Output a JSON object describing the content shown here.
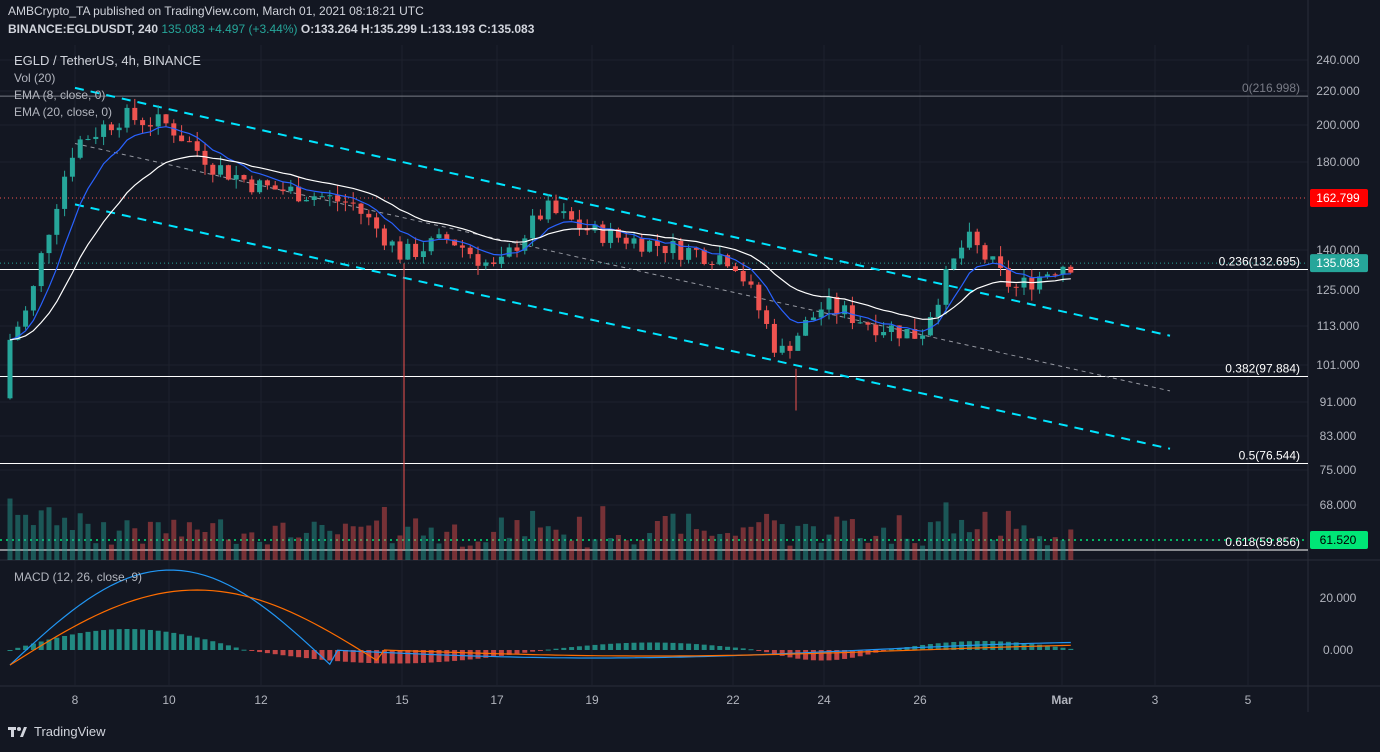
{
  "header": {
    "publisher": "AMBCrypto_TA published on TradingView.com, March 01, 2021 08:18:21 UTC",
    "symbol": "BINANCE:EGLDUSDT, 240",
    "last": "135.083",
    "change": "+4.497 (+3.44%)",
    "open": "O:133.264",
    "high": "H:135.299",
    "low": "L:133.193",
    "close": "C:135.083"
  },
  "pane_labels": {
    "title": "EGLD / TetherUS, 4h, BINANCE",
    "vol": "Vol (20)",
    "ema8": "EMA (8, close, 0)",
    "ema20": "EMA (20, close, 0)",
    "macd": "MACD (12, 26, close, 9)"
  },
  "footer": {
    "brand": "TradingView"
  },
  "colors": {
    "up": "#26a69a",
    "down": "#ef5350",
    "channel": "#00e5ff",
    "ema8": "#2962ff",
    "ema20": "#ffffff",
    "macd_signal": "#ff6d00"
  },
  "chart_data": {
    "type": "candlestick",
    "price_axis": [
      "240.000",
      "220.000",
      "200.000",
      "180.000",
      "162.799",
      "140.000",
      "135.083",
      "125.000",
      "113.000",
      "101.000",
      "91.000",
      "83.000",
      "75.000",
      "68.000",
      "61.520"
    ],
    "macd_axis": [
      "20.000",
      "0.000"
    ],
    "time_axis": [
      "8",
      "10",
      "12",
      "15",
      "17",
      "19",
      "22",
      "24",
      "26",
      "Mar",
      "3",
      "5"
    ],
    "last_price": 135.083,
    "resistance_level": 162.799,
    "volume_ma_level": 61.52,
    "fibonacci": [
      {
        "label": "0(216.998)",
        "value": 216.998
      },
      {
        "label": "0.236(132.695)",
        "value": 132.695
      },
      {
        "label": "0.382(97.884)",
        "value": 97.884
      },
      {
        "label": "0.5(76.544)",
        "value": 76.544
      },
      {
        "label": "0.618(59.856)",
        "value": 59.856
      }
    ],
    "channel": {
      "upper": [
        {
          "date": "Feb 8",
          "value": 222
        },
        {
          "date": "Mar 3",
          "value": 110
        }
      ],
      "mid": [
        {
          "date": "Feb 8",
          "value": 190
        },
        {
          "date": "Mar 3",
          "value": 94
        }
      ],
      "lower": [
        {
          "date": "Feb 8",
          "value": 160
        },
        {
          "date": "Mar 3",
          "value": 80
        }
      ]
    },
    "price_anchors": [
      {
        "date": "Feb 6",
        "value": 92
      },
      {
        "date": "Feb 7",
        "value": 120
      },
      {
        "date": "Feb 8",
        "value": 190
      },
      {
        "date": "Feb 9",
        "value": 205
      },
      {
        "date": "Feb 10",
        "value": 200
      },
      {
        "date": "Feb 11",
        "value": 178
      },
      {
        "date": "Feb 12",
        "value": 168
      },
      {
        "date": "Feb 13",
        "value": 165
      },
      {
        "date": "Feb 14",
        "value": 160
      },
      {
        "date": "Feb 15",
        "value": 138
      },
      {
        "date": "Feb 16",
        "value": 145
      },
      {
        "date": "Feb 17",
        "value": 132
      },
      {
        "date": "Feb 18",
        "value": 158
      },
      {
        "date": "Feb 19",
        "value": 148
      },
      {
        "date": "Feb 20",
        "value": 144
      },
      {
        "date": "Feb 21",
        "value": 140
      },
      {
        "date": "Feb 22",
        "value": 137
      },
      {
        "date": "Feb 23",
        "value": 104
      },
      {
        "date": "Feb 24",
        "value": 120
      },
      {
        "date": "Feb 25",
        "value": 114
      },
      {
        "date": "Feb 26",
        "value": 110
      },
      {
        "date": "Feb 27",
        "value": 145
      },
      {
        "date": "Feb 28",
        "value": 125
      },
      {
        "date": "Mar 1",
        "value": 135
      }
    ]
  }
}
